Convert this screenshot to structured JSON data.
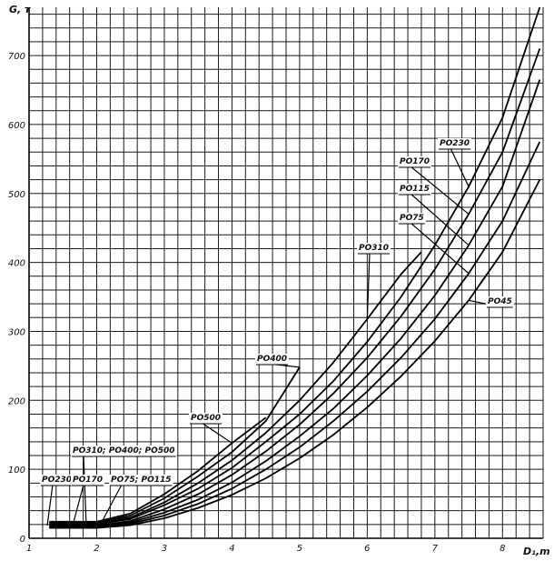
{
  "chart_data": {
    "type": "line",
    "title": "",
    "xlabel": "D₁,m",
    "ylabel": "G, т",
    "xlim": [
      1,
      8.6
    ],
    "ylim": [
      0,
      770
    ],
    "grid": true,
    "x_ticks": [
      {
        "value": 1,
        "label": "1"
      },
      {
        "value": 2,
        "label": "2"
      },
      {
        "value": 3,
        "label": "3"
      },
      {
        "value": 4,
        "label": "4"
      },
      {
        "value": 5,
        "label": "5"
      },
      {
        "value": 6,
        "label": "6"
      },
      {
        "value": 7,
        "label": "7"
      },
      {
        "value": 8,
        "label": "8"
      }
    ],
    "y_ticks": [
      {
        "value": 0,
        "label": "0"
      },
      {
        "value": 100,
        "label": "100"
      },
      {
        "value": 200,
        "label": "200"
      },
      {
        "value": 300,
        "label": "300"
      },
      {
        "value": 400,
        "label": "400"
      },
      {
        "value": 500,
        "label": "500"
      },
      {
        "value": 600,
        "label": "600"
      },
      {
        "value": 700,
        "label": "700"
      }
    ],
    "series": [
      {
        "name": "PO230",
        "x": [
          1.3,
          2.0,
          2.5,
          3.0,
          3.5,
          4.0,
          4.5,
          5.0,
          5.5,
          6.0,
          6.5,
          7.0,
          7.5,
          8.0,
          8.55
        ],
        "y": [
          20,
          20,
          28,
          48,
          72,
          102,
          140,
          180,
          228,
          285,
          350,
          425,
          510,
          610,
          770
        ]
      },
      {
        "name": "PO170",
        "x": [
          1.3,
          2.0,
          2.5,
          3.0,
          3.5,
          4.0,
          4.5,
          5.0,
          5.5,
          6.0,
          6.5,
          7.0,
          7.5,
          8.0,
          8.55
        ],
        "y": [
          18,
          18,
          25,
          42,
          64,
          92,
          126,
          165,
          210,
          262,
          322,
          390,
          470,
          560,
          710
        ]
      },
      {
        "name": "PO115",
        "x": [
          1.3,
          2.0,
          2.5,
          3.0,
          3.5,
          4.0,
          4.5,
          5.0,
          5.5,
          6.0,
          6.5,
          7.0,
          7.5,
          8.0,
          8.55
        ],
        "y": [
          17,
          17,
          23,
          37,
          56,
          81,
          112,
          148,
          188,
          236,
          290,
          352,
          425,
          510,
          665
        ]
      },
      {
        "name": "PO75",
        "x": [
          1.3,
          2.0,
          2.5,
          3.0,
          3.5,
          4.0,
          4.5,
          5.0,
          5.5,
          6.0,
          6.5,
          7.0,
          7.5,
          8.0,
          8.55
        ],
        "y": [
          16,
          16,
          21,
          33,
          50,
          72,
          100,
          132,
          170,
          213,
          262,
          318,
          384,
          460,
          575
        ]
      },
      {
        "name": "PO45",
        "x": [
          1.3,
          2.0,
          2.5,
          3.0,
          3.5,
          4.0,
          4.5,
          5.0,
          5.5,
          6.0,
          6.5,
          7.0,
          7.5,
          8.0,
          8.55
        ],
        "y": [
          15,
          15,
          19,
          29,
          44,
          63,
          87,
          116,
          150,
          190,
          235,
          286,
          345,
          415,
          520
        ]
      },
      {
        "name": "PO310",
        "x": [
          1.3,
          2.0,
          2.5,
          3.0,
          3.5,
          4.0,
          4.5,
          5.0,
          5.5,
          6.0,
          6.5,
          6.8
        ],
        "y": [
          22,
          22,
          30,
          52,
          80,
          113,
          153,
          200,
          255,
          318,
          383,
          415
        ]
      },
      {
        "name": "PO400",
        "x": [
          1.3,
          2.0,
          2.5,
          3.0,
          3.5,
          4.0,
          4.5,
          5.0
        ],
        "y": [
          23,
          23,
          33,
          58,
          90,
          125,
          170,
          248
        ]
      },
      {
        "name": "PO500",
        "x": [
          1.3,
          2.0,
          2.5,
          3.0,
          3.5,
          4.0,
          4.5
        ],
        "y": [
          24,
          24,
          36,
          64,
          98,
          138,
          175
        ]
      }
    ],
    "annotations": [
      {
        "text": "PO230",
        "points_to": "PO230"
      },
      {
        "text": "PO170",
        "points_to": "PO170"
      },
      {
        "text": "PO115",
        "points_to": "PO115"
      },
      {
        "text": "PO75",
        "points_to": "PO75"
      },
      {
        "text": "PO45",
        "points_to": "PO45"
      },
      {
        "text": "PO310",
        "points_to": "PO310"
      },
      {
        "text": "PO400",
        "points_to": "PO400"
      },
      {
        "text": "PO500",
        "points_to": "PO500"
      },
      {
        "text": "PO310; PO400; PO500",
        "points_to": "start"
      },
      {
        "text": "PO230",
        "points_to": "start"
      },
      {
        "text": "PO170",
        "points_to": "start"
      },
      {
        "text": "PO75; PO115",
        "points_to": "start"
      }
    ]
  }
}
